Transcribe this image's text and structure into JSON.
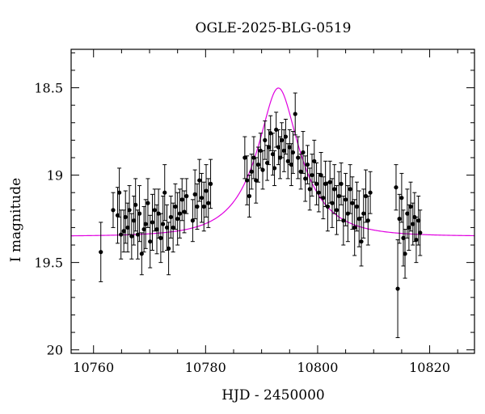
{
  "chart_data": {
    "type": "scatter",
    "title": "OGLE-2025-BLG-0519",
    "xlabel": "HJD - 2450000",
    "ylabel": "I magnitude",
    "xlim": [
      10756,
      10828
    ],
    "ylim": [
      20.02,
      18.28
    ],
    "y_inverted": true,
    "x_ticks": [
      10760,
      10780,
      10800,
      10820
    ],
    "y_ticks": [
      18.5,
      19,
      19.5,
      20
    ],
    "y_tick_labels": [
      "18.5",
      "19",
      "19.5",
      "20"
    ],
    "grid": false,
    "colors": {
      "points": "#000000",
      "model": "#e000e0",
      "frame": "#000000"
    },
    "series": [
      {
        "type": "errorbar-points",
        "points": [
          [
            10761.3,
            19.44,
            0.17
          ],
          [
            10763.5,
            19.2,
            0.1
          ],
          [
            10764.3,
            19.23,
            0.16
          ],
          [
            10764.6,
            19.1,
            0.14
          ],
          [
            10764.9,
            19.34,
            0.14
          ],
          [
            10765.4,
            19.32,
            0.12
          ],
          [
            10765.7,
            19.24,
            0.15
          ],
          [
            10766.1,
            19.3,
            0.14
          ],
          [
            10766.4,
            19.2,
            0.14
          ],
          [
            10766.8,
            19.35,
            0.13
          ],
          [
            10767.2,
            19.26,
            0.14
          ],
          [
            10767.5,
            19.17,
            0.15
          ],
          [
            10767.9,
            19.34,
            0.14
          ],
          [
            10768.2,
            19.22,
            0.16
          ],
          [
            10768.6,
            19.45,
            0.12
          ],
          [
            10769.0,
            19.31,
            0.13
          ],
          [
            10769.3,
            19.28,
            0.14
          ],
          [
            10769.7,
            19.16,
            0.14
          ],
          [
            10770.1,
            19.38,
            0.15
          ],
          [
            10770.5,
            19.27,
            0.16
          ],
          [
            10770.9,
            19.2,
            0.12
          ],
          [
            10771.3,
            19.31,
            0.14
          ],
          [
            10771.6,
            19.22,
            0.14
          ],
          [
            10772.0,
            19.36,
            0.14
          ],
          [
            10772.4,
            19.28,
            0.16
          ],
          [
            10772.7,
            19.1,
            0.16
          ],
          [
            10773.1,
            19.3,
            0.13
          ],
          [
            10773.4,
            19.42,
            0.15
          ],
          [
            10773.8,
            19.24,
            0.12
          ],
          [
            10774.2,
            19.3,
            0.14
          ],
          [
            10774.6,
            19.18,
            0.13
          ],
          [
            10775.0,
            19.25,
            0.15
          ],
          [
            10775.4,
            19.22,
            0.14
          ],
          [
            10775.8,
            19.14,
            0.12
          ],
          [
            10776.2,
            19.21,
            0.12
          ],
          [
            10776.6,
            19.12,
            0.1
          ],
          [
            10777.7,
            19.26,
            0.12
          ],
          [
            10778.1,
            19.11,
            0.14
          ],
          [
            10778.5,
            19.18,
            0.13
          ],
          [
            10778.9,
            19.03,
            0.12
          ],
          [
            10779.3,
            19.13,
            0.14
          ],
          [
            10779.7,
            19.18,
            0.14
          ],
          [
            10780.1,
            19.09,
            0.15
          ],
          [
            10780.5,
            19.16,
            0.14
          ],
          [
            10780.9,
            19.05,
            0.14
          ],
          [
            10787.0,
            18.9,
            0.12
          ],
          [
            10787.4,
            19.03,
            0.14
          ],
          [
            10787.8,
            19.12,
            0.12
          ],
          [
            10788.2,
            18.98,
            0.1
          ],
          [
            10788.6,
            18.9,
            0.12
          ],
          [
            10789.0,
            19.03,
            0.13
          ],
          [
            10789.4,
            18.94,
            0.1
          ],
          [
            10789.8,
            18.86,
            0.1
          ],
          [
            10790.2,
            18.97,
            0.11
          ],
          [
            10790.6,
            18.8,
            0.11
          ],
          [
            10791.0,
            18.93,
            0.1
          ],
          [
            10791.3,
            18.84,
            0.1
          ],
          [
            10791.6,
            18.76,
            0.1
          ],
          [
            10792.0,
            18.88,
            0.12
          ],
          [
            10792.3,
            18.96,
            0.1
          ],
          [
            10792.6,
            18.74,
            0.1
          ],
          [
            10793.0,
            18.84,
            0.1
          ],
          [
            10793.3,
            18.9,
            0.12
          ],
          [
            10793.6,
            18.8,
            0.1
          ],
          [
            10794.0,
            18.86,
            0.12
          ],
          [
            10794.3,
            18.78,
            0.1
          ],
          [
            10794.7,
            18.92,
            0.1
          ],
          [
            10795.0,
            18.84,
            0.1
          ],
          [
            10795.3,
            18.94,
            0.12
          ],
          [
            10795.6,
            18.87,
            0.12
          ],
          [
            10796.0,
            18.65,
            0.12
          ],
          [
            10796.5,
            18.9,
            0.12
          ],
          [
            10797.0,
            18.98,
            0.1
          ],
          [
            10797.4,
            18.87,
            0.12
          ],
          [
            10797.8,
            19.02,
            0.13
          ],
          [
            10798.2,
            18.94,
            0.11
          ],
          [
            10798.6,
            19.08,
            0.12
          ],
          [
            10799.0,
            19.0,
            0.12
          ],
          [
            10799.4,
            18.92,
            0.12
          ],
          [
            10799.8,
            19.05,
            0.12
          ],
          [
            10800.2,
            19.1,
            0.11
          ],
          [
            10800.6,
            19.0,
            0.13
          ],
          [
            10801.0,
            19.13,
            0.12
          ],
          [
            10801.4,
            19.05,
            0.13
          ],
          [
            10801.8,
            19.18,
            0.14
          ],
          [
            10802.2,
            19.04,
            0.12
          ],
          [
            10802.6,
            19.16,
            0.14
          ],
          [
            10803.0,
            19.08,
            0.14
          ],
          [
            10803.4,
            19.2,
            0.14
          ],
          [
            10803.8,
            19.12,
            0.14
          ],
          [
            10804.2,
            19.05,
            0.12
          ],
          [
            10804.6,
            19.26,
            0.14
          ],
          [
            10805.0,
            19.14,
            0.15
          ],
          [
            10805.4,
            19.22,
            0.16
          ],
          [
            10805.8,
            19.08,
            0.14
          ],
          [
            10806.2,
            19.16,
            0.15
          ],
          [
            10806.6,
            19.3,
            0.16
          ],
          [
            10807.0,
            19.18,
            0.14
          ],
          [
            10807.4,
            19.25,
            0.16
          ],
          [
            10807.8,
            19.38,
            0.14
          ],
          [
            10808.2,
            19.22,
            0.14
          ],
          [
            10808.6,
            19.12,
            0.15
          ],
          [
            10809.0,
            19.26,
            0.14
          ],
          [
            10809.4,
            19.1,
            0.12
          ],
          [
            10814.0,
            19.07,
            0.13
          ],
          [
            10814.3,
            19.65,
            0.28
          ],
          [
            10814.6,
            19.25,
            0.14
          ],
          [
            10815.0,
            19.13,
            0.14
          ],
          [
            10815.3,
            19.36,
            0.16
          ],
          [
            10815.6,
            19.45,
            0.14
          ],
          [
            10816.0,
            19.22,
            0.14
          ],
          [
            10816.3,
            19.3,
            0.13
          ],
          [
            10816.6,
            19.18,
            0.14
          ],
          [
            10817.0,
            19.28,
            0.12
          ],
          [
            10817.3,
            19.24,
            0.14
          ],
          [
            10817.6,
            19.37,
            0.13
          ],
          [
            10818.0,
            19.26,
            0.14
          ],
          [
            10818.3,
            19.33,
            0.13
          ]
        ]
      },
      {
        "type": "model-curve",
        "t0": 10793.0,
        "u0": 0.36,
        "tE": 8.3,
        "baseline_mag": 19.35,
        "blend_fraction": 0.62
      }
    ]
  }
}
